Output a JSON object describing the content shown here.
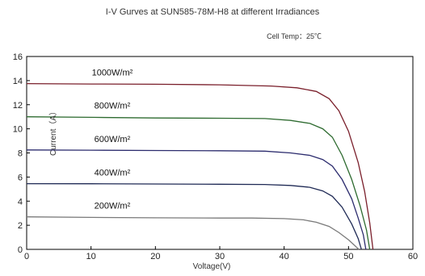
{
  "chart_data": {
    "type": "line",
    "title": "I-V Gurves at SUN585-78M-H8 at different Irradiances",
    "annotation": "Cell Temp：25℃",
    "xlabel": "Voltage(V)",
    "ylabel": "Current（A）",
    "xlim": [
      0,
      60
    ],
    "ylim": [
      0,
      16
    ],
    "xticks": [
      0,
      10,
      20,
      30,
      40,
      50,
      60
    ],
    "yticks": [
      0,
      2,
      4,
      6,
      8,
      10,
      12,
      14,
      16
    ],
    "grid": false,
    "series": [
      {
        "name": "1000W/m²",
        "color": "#7a1f2b",
        "x": [
          0,
          10,
          20,
          30,
          38,
          42,
          45,
          47,
          48.5,
          50,
          51.5,
          52.5,
          53.3,
          53.8
        ],
        "y": [
          13.75,
          13.72,
          13.7,
          13.65,
          13.55,
          13.4,
          13.1,
          12.5,
          11.5,
          9.8,
          7.2,
          4.8,
          2.2,
          0
        ]
      },
      {
        "name": "800W/m²",
        "color": "#2e6b30",
        "x": [
          0,
          10,
          20,
          30,
          37,
          41,
          44,
          46,
          47.5,
          49,
          50.5,
          51.8,
          52.8,
          53.3
        ],
        "y": [
          11.0,
          10.95,
          10.9,
          10.88,
          10.85,
          10.7,
          10.45,
          10.0,
          9.3,
          7.8,
          5.8,
          3.6,
          1.6,
          0
        ]
      },
      {
        "name": "600W/m²",
        "color": "#2c2c6e",
        "x": [
          0,
          10,
          20,
          30,
          37,
          41,
          44,
          46,
          47.5,
          49,
          50.5,
          51.5,
          52.3,
          52.7
        ],
        "y": [
          8.25,
          8.23,
          8.2,
          8.18,
          8.15,
          8.0,
          7.8,
          7.45,
          6.9,
          5.8,
          4.2,
          2.6,
          1.2,
          0
        ]
      },
      {
        "name": "400W/m²",
        "color": "#1f2a55",
        "x": [
          0,
          10,
          20,
          30,
          37,
          41,
          44,
          46,
          47.5,
          49,
          50.5,
          51.5,
          52.0
        ],
        "y": [
          5.45,
          5.44,
          5.42,
          5.4,
          5.38,
          5.3,
          5.15,
          4.85,
          4.4,
          3.5,
          2.1,
          0.9,
          0
        ]
      },
      {
        "name": "200W/m²",
        "color": "#7a7a7a",
        "x": [
          0,
          10,
          20,
          30,
          35,
          40,
          43,
          45,
          47,
          48.5,
          50,
          51.0,
          51.6
        ],
        "y": [
          2.7,
          2.65,
          2.62,
          2.6,
          2.6,
          2.55,
          2.45,
          2.25,
          1.9,
          1.4,
          0.8,
          0.3,
          0
        ]
      }
    ]
  }
}
